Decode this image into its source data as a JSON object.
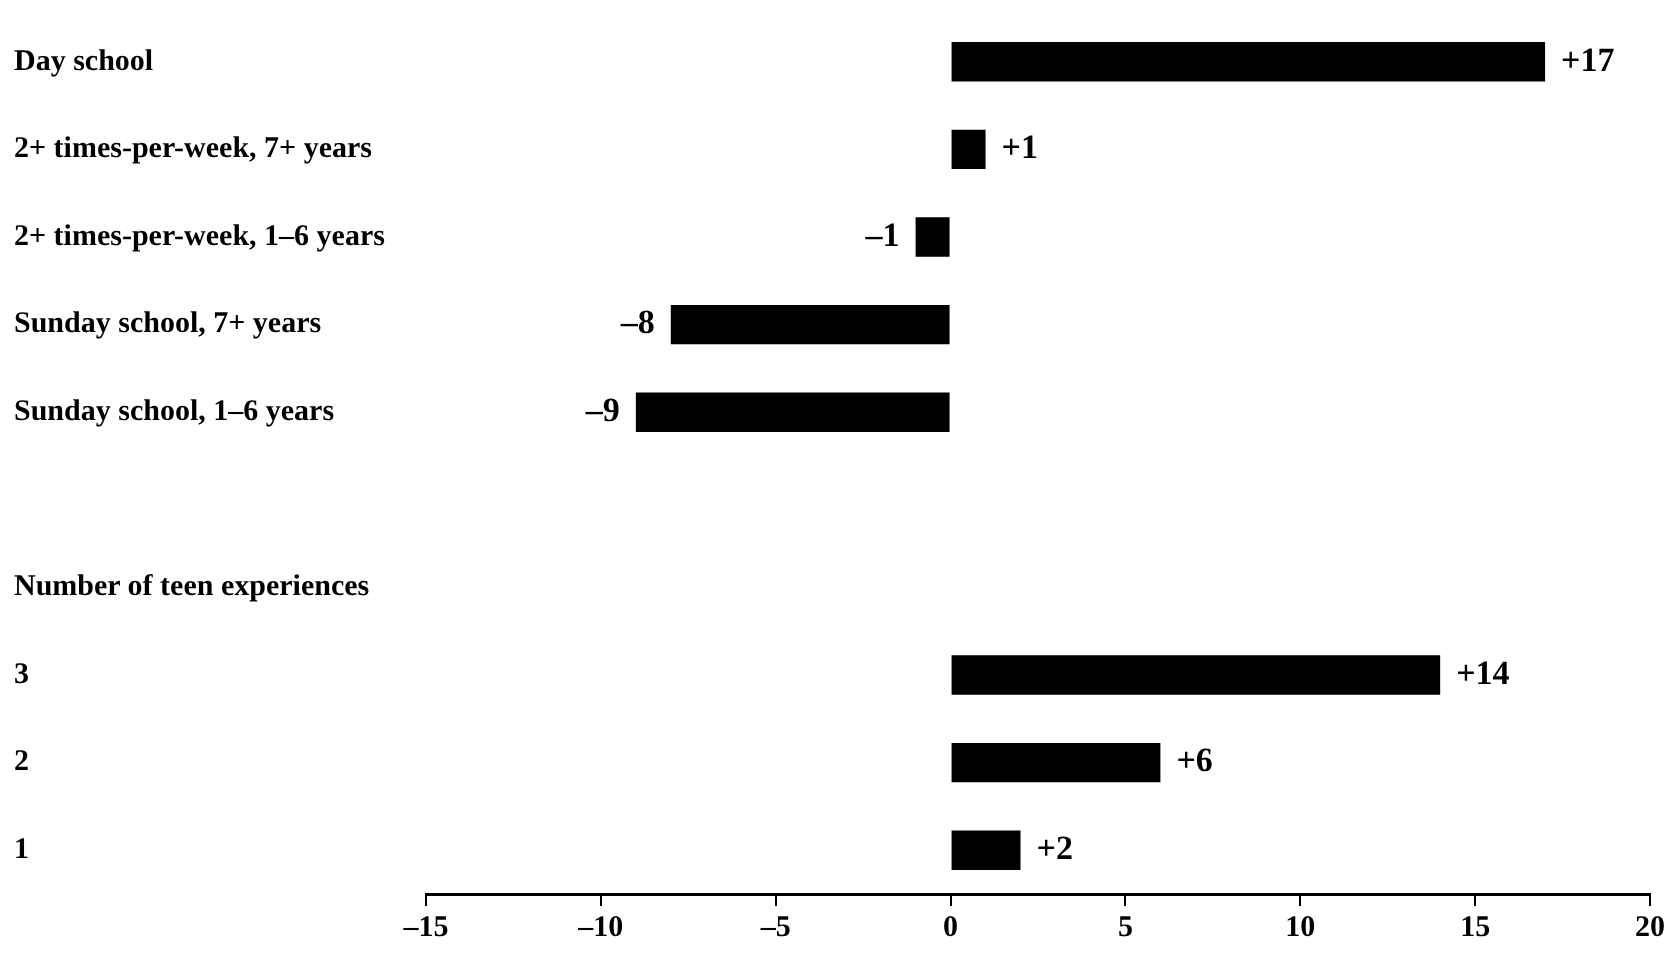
{
  "chart_data": {
    "type": "bar",
    "orientation": "horizontal",
    "color": "#000000",
    "categories": [
      "Day school",
      "2+ times-per-week, 7+ years",
      "2+ times-per-week, 1–6 years",
      "Sunday school, 7+ years",
      "Sunday school, 1–6 years",
      null,
      "Number of teen experiences",
      "3",
      "2",
      "1"
    ],
    "values": [
      17,
      1,
      -1,
      -8,
      -9,
      null,
      null,
      14,
      6,
      2
    ],
    "value_labels": [
      "+17",
      "+1",
      "–1",
      "–8",
      "–9",
      null,
      null,
      "+14",
      "+6",
      "+2"
    ],
    "xlim": [
      -15,
      20
    ],
    "xticks": [
      {
        "value": -15,
        "label": "–15"
      },
      {
        "value": -10,
        "label": "–10"
      },
      {
        "value": -5,
        "label": "–5"
      },
      0,
      5,
      10,
      15,
      20
    ]
  }
}
